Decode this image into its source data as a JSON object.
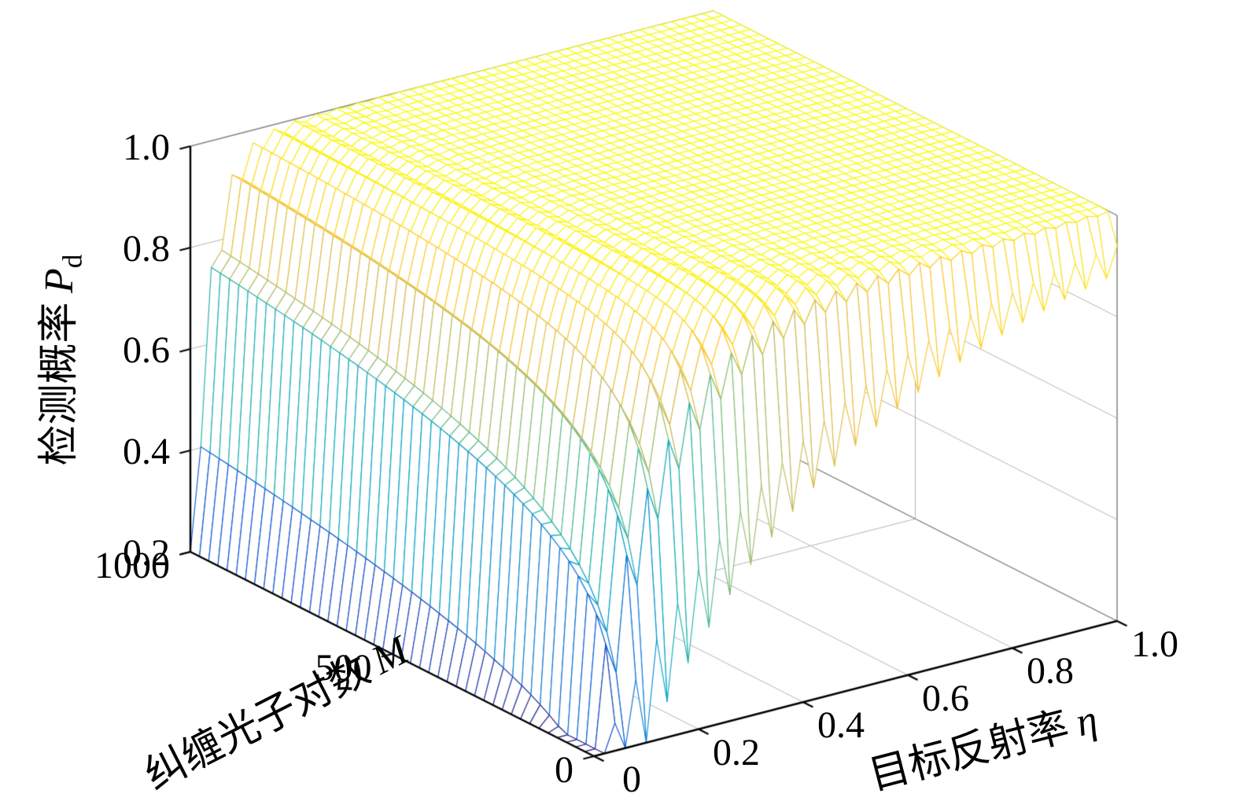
{
  "chart_data": {
    "type": "surface",
    "description": "3D mesh surface: detection probability versus target reflectivity and number of entangled photon pairs",
    "x_axis": {
      "label_text": "目标反射率",
      "label_symbol": "η",
      "min": 0,
      "max": 1,
      "ticks": [
        0,
        0.2,
        0.4,
        0.6,
        0.8,
        1
      ],
      "tick_labels": [
        "0",
        "0.2",
        "0.4",
        "0.6",
        "0.8",
        "1.0"
      ]
    },
    "y_axis": {
      "label_text": "纠缠光子对数",
      "label_symbol": "M",
      "min": 0,
      "max": 1000,
      "ticks": [
        0,
        500,
        1000
      ],
      "tick_labels": [
        "0",
        "500",
        "1000"
      ]
    },
    "z_axis": {
      "label_text": "检测概率",
      "label_symbol": "P",
      "label_subscript": "d",
      "min": 0.2,
      "max": 1,
      "ticks": [
        0.2,
        0.4,
        0.6,
        0.8,
        1
      ],
      "tick_labels": [
        "0.2",
        "0.4",
        "0.6",
        "0.8",
        "1.0"
      ]
    },
    "surface": {
      "model": "Pd(eta,M) = clamp(1 - depth*exp(-k*eta*(M+1)^m_exponent) - teeth, 0.2, 1)",
      "k": 2.75,
      "m_exponent": 0.35,
      "depth": 0.8,
      "teeth_amp_odd": 0.22,
      "teeth_amp_even": 0.03,
      "teeth_decay": 0.45,
      "grid_nx": 50,
      "grid_ny": 44
    },
    "view": {
      "azimuth": -37.5,
      "elevation": 30
    },
    "colormap": {
      "name": "parula",
      "stops": [
        [
          0,
          "#352a87"
        ],
        [
          0.125,
          "#0f5cdd"
        ],
        [
          0.25,
          "#1481d6"
        ],
        [
          0.375,
          "#06a4ca"
        ],
        [
          0.5,
          "#2eb7a4"
        ],
        [
          0.625,
          "#87bf77"
        ],
        [
          0.75,
          "#d1bb59"
        ],
        [
          0.875,
          "#fec832"
        ],
        [
          1,
          "#f9fb0e"
        ]
      ]
    },
    "colors": {
      "axis": "#000000",
      "grid": "#b3b3b3",
      "pane_edge": "#898989",
      "face": "#ffffff"
    }
  }
}
